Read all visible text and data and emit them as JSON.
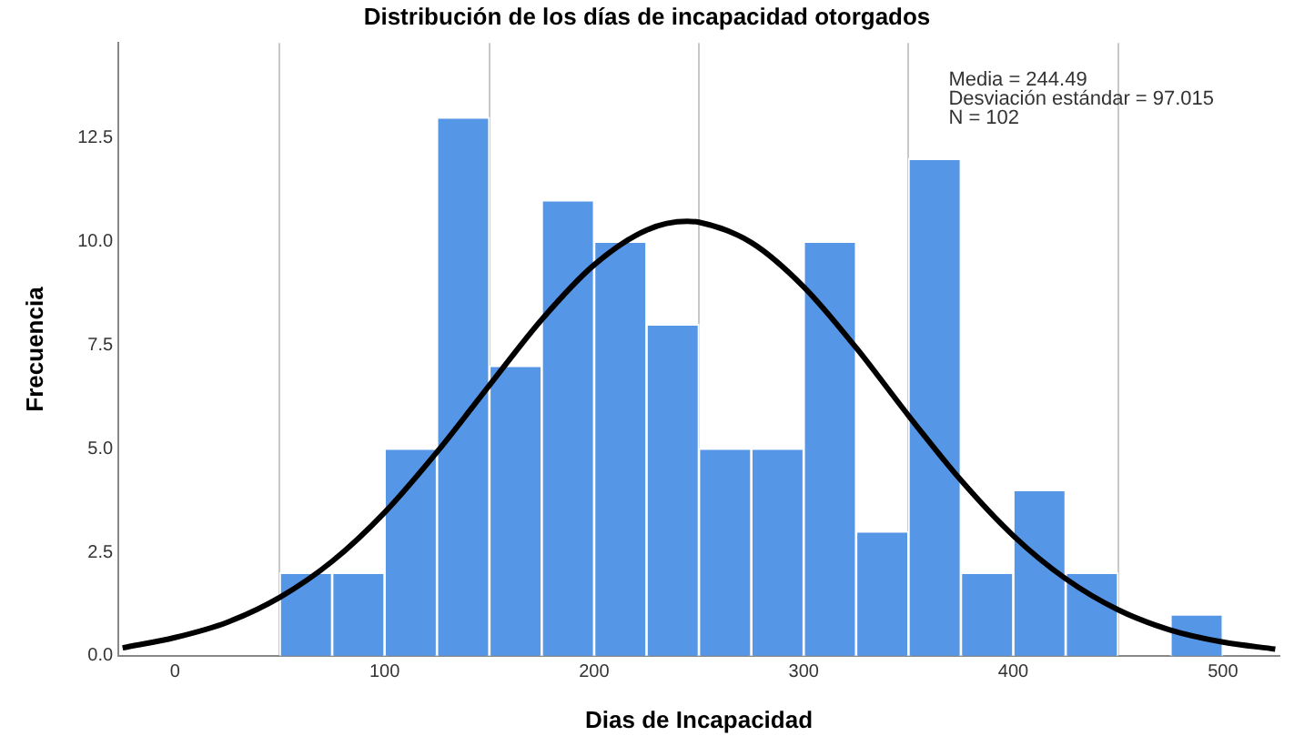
{
  "chart_data": {
    "type": "histogram",
    "title": "Distribución de los días de incapacidad otorgados",
    "xlabel": "Dias de Incapacidad",
    "ylabel": "Frecuencia",
    "annotations": [
      "Media = 244.49",
      "Desviación estándar = 97.015",
      "N = 102"
    ],
    "bins": [
      50,
      75,
      100,
      125,
      150,
      175,
      200,
      225,
      250,
      275,
      300,
      325,
      350,
      375,
      400,
      425,
      450,
      475,
      500
    ],
    "series": [
      {
        "color": "#5596e6",
        "values": [
          2,
          2,
          5,
          13,
          7,
          11,
          10,
          8,
          5,
          5,
          10,
          3,
          12,
          2,
          4,
          2,
          0,
          1
        ]
      },
      {
        "type": "line",
        "color": "#000000",
        "x": [
          -25,
          0,
          25,
          50,
          75,
          100,
          125,
          150,
          175,
          200,
          225,
          244.49,
          250,
          275,
          300,
          325,
          350,
          375,
          400,
          425,
          450,
          475,
          500,
          525
        ],
        "values": [
          0.19,
          0.44,
          0.81,
          1.41,
          2.28,
          3.46,
          4.92,
          6.53,
          8.12,
          9.44,
          10.28,
          10.49,
          10.47,
          9.98,
          8.91,
          7.44,
          5.8,
          4.24,
          2.9,
          1.86,
          1.11,
          0.62,
          0.33,
          0.16
        ]
      }
    ],
    "xlim": [
      -27,
      527
    ],
    "xticks": [
      0,
      100,
      200,
      300,
      400,
      500
    ],
    "ylim": [
      0,
      14.8
    ],
    "yticks": [
      {
        "value": 0,
        "label": "0.0"
      },
      {
        "value": 2.5,
        "label": "2.5"
      },
      {
        "value": 5,
        "label": "5.0"
      },
      {
        "value": 7.5,
        "label": "7.5"
      },
      {
        "value": 10,
        "label": "10.0"
      },
      {
        "value": 12.5,
        "label": "12.5"
      }
    ],
    "grid": "x",
    "marker": "none",
    "line_style": "solid"
  }
}
